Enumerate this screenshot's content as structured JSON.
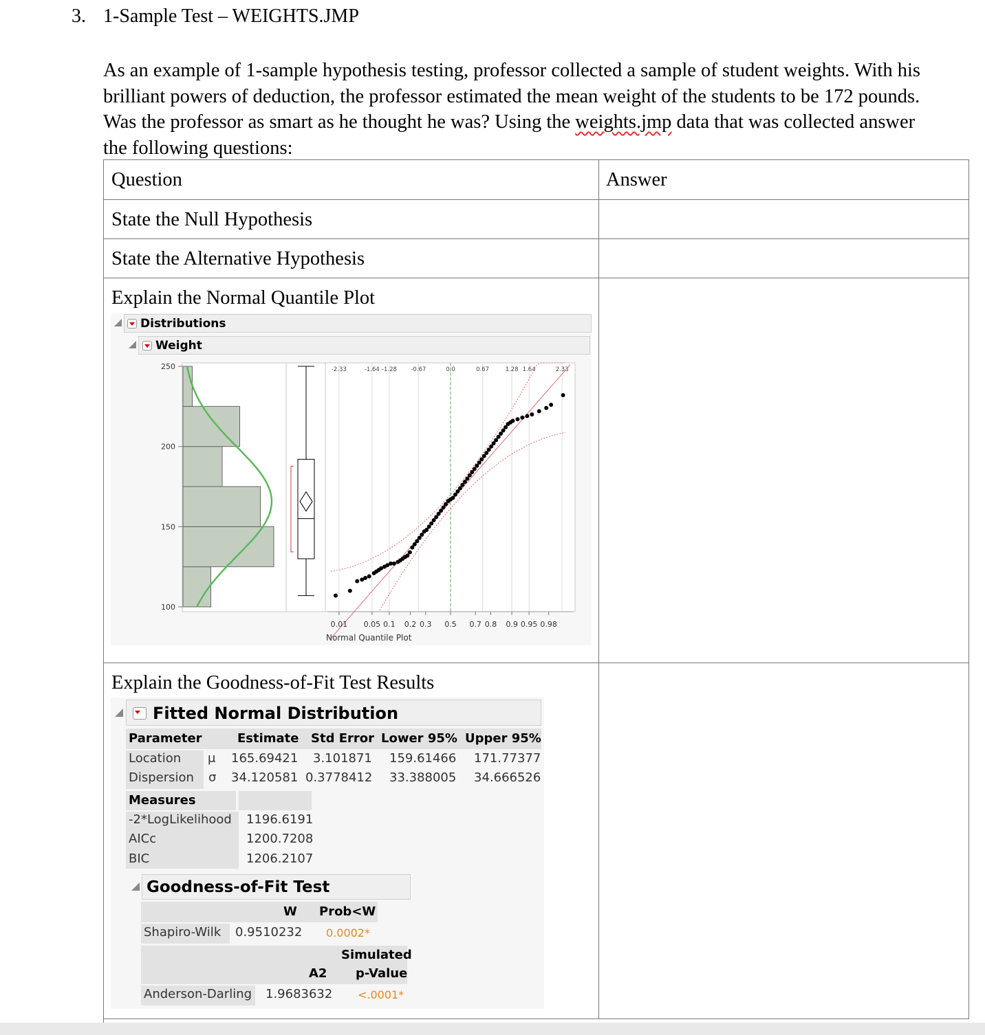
{
  "heading": {
    "number": "3.",
    "title": "1-Sample Test – WEIGHTS.JMP"
  },
  "intro": {
    "line1": "As an example of 1-sample hypothesis testing, professor collected a sample of student weights. With his",
    "line2": "brilliant powers of deduction, the professor estimated the mean weight of the students to be 172 pounds.",
    "line3a": "Was the professor as smart as he thought he was? Using the ",
    "line3link": "weights.jmp",
    "line3b": " data that was collected answer",
    "line4": "the following questions:"
  },
  "table": {
    "col_question": "Question",
    "col_answer": "Answer",
    "rows": [
      "State the Null Hypothesis",
      "State the Alternative Hypothesis",
      "Explain the Normal Quantile Plot",
      "Explain the Goodness-of-Fit Test Results"
    ]
  },
  "distributions": {
    "outline_title": "Distributions",
    "sub_title": "Weight",
    "plot_label": "Normal Quantile Plot",
    "y_ticks": [
      "250",
      "200",
      "150",
      "100"
    ],
    "z_ticks": [
      "-2.33",
      "-1.64",
      "-1.28",
      "-0.67",
      "0.0",
      "0.67",
      "1.28",
      "1.64",
      "2.33"
    ],
    "p_ticks": [
      "0.01",
      "0.05",
      "0.1",
      "0.2",
      "0.3",
      "0.5",
      "0.7",
      "0.8",
      "0.9",
      "0.95",
      "0.98"
    ],
    "colors": {
      "hist_fill": "#c3cec0",
      "normal_curve": "#5cb85c",
      "ref_line": "#e07070",
      "points": "#000000"
    }
  },
  "chart_data": {
    "type": "scatter",
    "xlabel": "Normal Quantile Plot",
    "ylim": [
      100,
      250
    ],
    "histogram": {
      "bin_edges": [
        100,
        125,
        150,
        175,
        200,
        225,
        250
      ],
      "heights_relative": [
        0.27,
        0.88,
        0.75,
        0.38,
        0.55,
        0.09
      ]
    },
    "normal_fit": {
      "mean": 165.69421,
      "sd": 34.120581
    },
    "boxplot": {
      "q1": 130,
      "median": 155,
      "q3": 192,
      "whisker_low": 107,
      "whisker_high": 250,
      "mean": 165.7
    },
    "quantile_points": [
      [
        -2.4,
        107
      ],
      [
        -2.1,
        110
      ],
      [
        -1.95,
        116
      ],
      [
        -1.85,
        117
      ],
      [
        -1.78,
        118
      ],
      [
        -1.7,
        119
      ],
      [
        -1.6,
        121
      ],
      [
        -1.55,
        122
      ],
      [
        -1.5,
        123
      ],
      [
        -1.45,
        124
      ],
      [
        -1.38,
        125
      ],
      [
        -1.32,
        126
      ],
      [
        -1.25,
        127
      ],
      [
        -1.18,
        127
      ],
      [
        -1.1,
        128
      ],
      [
        -1.05,
        129
      ],
      [
        -1.0,
        130
      ],
      [
        -0.95,
        131
      ],
      [
        -0.9,
        132
      ],
      [
        -0.85,
        134
      ],
      [
        -0.8,
        137
      ],
      [
        -0.75,
        139
      ],
      [
        -0.7,
        141
      ],
      [
        -0.65,
        143
      ],
      [
        -0.6,
        145
      ],
      [
        -0.55,
        147
      ],
      [
        -0.5,
        148
      ],
      [
        -0.45,
        150
      ],
      [
        -0.4,
        152
      ],
      [
        -0.35,
        154
      ],
      [
        -0.3,
        156
      ],
      [
        -0.25,
        158
      ],
      [
        -0.2,
        160
      ],
      [
        -0.15,
        162
      ],
      [
        -0.1,
        164
      ],
      [
        -0.05,
        166
      ],
      [
        0.0,
        167
      ],
      [
        0.05,
        168
      ],
      [
        0.1,
        170
      ],
      [
        0.15,
        172
      ],
      [
        0.2,
        174
      ],
      [
        0.25,
        176
      ],
      [
        0.3,
        178
      ],
      [
        0.35,
        180
      ],
      [
        0.4,
        182
      ],
      [
        0.45,
        184
      ],
      [
        0.5,
        186
      ],
      [
        0.55,
        188
      ],
      [
        0.6,
        190
      ],
      [
        0.65,
        192
      ],
      [
        0.7,
        194
      ],
      [
        0.75,
        196
      ],
      [
        0.8,
        198
      ],
      [
        0.85,
        200
      ],
      [
        0.9,
        202
      ],
      [
        0.95,
        204
      ],
      [
        1.0,
        206
      ],
      [
        1.05,
        208
      ],
      [
        1.1,
        210
      ],
      [
        1.15,
        212
      ],
      [
        1.2,
        214
      ],
      [
        1.25,
        215
      ],
      [
        1.3,
        216
      ],
      [
        1.4,
        217
      ],
      [
        1.5,
        218
      ],
      [
        1.6,
        219
      ],
      [
        1.7,
        220
      ],
      [
        1.85,
        222
      ],
      [
        2.0,
        224
      ],
      [
        2.1,
        226
      ],
      [
        2.35,
        232
      ]
    ]
  },
  "fitted_normal": {
    "title": "Fitted Normal Distribution",
    "headers": [
      "Parameter",
      "Estimate",
      "Std Error",
      "Lower 95%",
      "Upper 95%"
    ],
    "rows": [
      {
        "name": "Location",
        "symbol": "μ",
        "estimate": "165.69421",
        "std_error": "3.101871",
        "lower": "159.61466",
        "upper": "171.77377"
      },
      {
        "name": "Dispersion",
        "symbol": "σ",
        "estimate": "34.120581",
        "std_error": "0.3778412",
        "lower": "33.388005",
        "upper": "34.666526"
      }
    ],
    "measures_title": "Measures",
    "measures": [
      {
        "name": "-2*LogLikelihood",
        "value": "1196.6191"
      },
      {
        "name": "AICc",
        "value": "1200.7208"
      },
      {
        "name": "BIC",
        "value": "1206.2107"
      }
    ]
  },
  "gof": {
    "title": "Goodness-of-Fit Test",
    "sw_col_w": "W",
    "sw_col_p": "Prob<W",
    "sw_name": "Shapiro-Wilk",
    "sw_w": "0.9510232",
    "sw_p": "0.0002*",
    "ad_col_a2": "A2",
    "ad_col_sim1": "Simulated",
    "ad_col_sim2": "p-Value",
    "ad_name": "Anderson-Darling",
    "ad_a2": "1.9683632",
    "ad_p": "<.0001*",
    "highlight_color": "#e08a1e"
  }
}
